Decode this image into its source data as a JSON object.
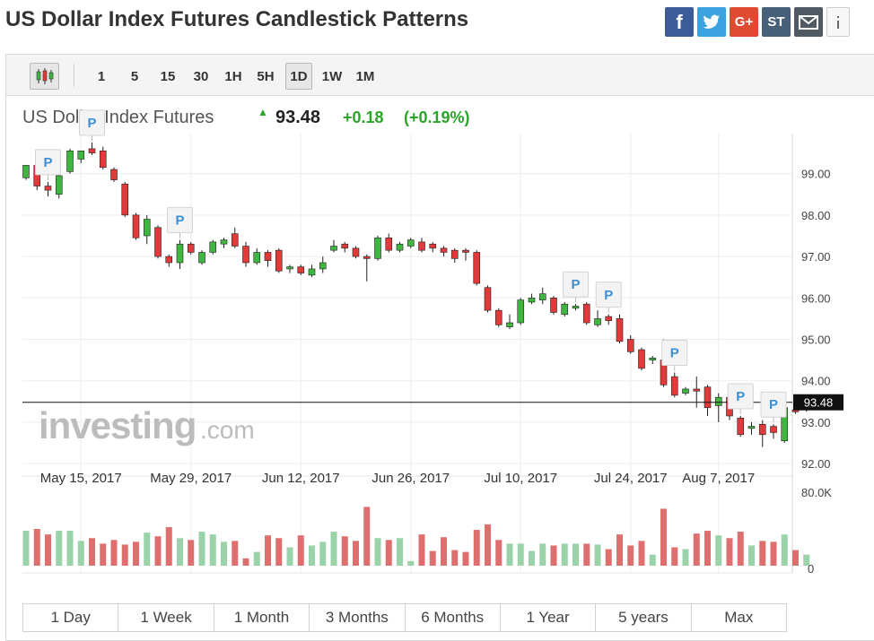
{
  "page": {
    "title": "US Dollar Index Futures Candlestick Patterns"
  },
  "share": {
    "facebook": "f",
    "twitter": "t",
    "googleplus": "G+",
    "stocktwits": "ST"
  },
  "toolbar": {
    "intervals": [
      "1",
      "5",
      "15",
      "30",
      "1H",
      "5H",
      "1D",
      "1W",
      "1M"
    ],
    "active": "1D"
  },
  "quote": {
    "name": "US Dollar Index Futures",
    "price": "93.48",
    "change": "+0.18",
    "change_pct": "(+0.19%)"
  },
  "watermark": {
    "brand": "investing",
    "suffix": ".com"
  },
  "ranges": [
    "1 Day",
    "1 Week",
    "1 Month",
    "3 Months",
    "6 Months",
    "1 Year",
    "5 years",
    "Max"
  ],
  "colors": {
    "up": "#3fb63f",
    "down": "#e03a3a",
    "vol_up": "#9ad3a9",
    "vol_down": "#df6f6f",
    "quote_up": "#2aa52a"
  },
  "chart_data": {
    "type": "candlestick",
    "price_axis": {
      "ticks": [
        92,
        93,
        94,
        95,
        96,
        97,
        98,
        99
      ],
      "tick_labels": [
        "92.00",
        "93.00",
        "94.00",
        "95.00",
        "96.00",
        "97.00",
        "98.00",
        "99.00"
      ],
      "range": [
        91.7,
        99.75
      ]
    },
    "last_price": 93.48,
    "last_price_label": "93.48",
    "volume_axis": {
      "tick_labels": [
        "80.0K",
        "0"
      ],
      "max": 80000
    },
    "x_labels": [
      "May 15, 2017",
      "May 29, 2017",
      "Jun 12, 2017",
      "Jun 26, 2017",
      "Jul 10, 2017",
      "Jul 24, 2017",
      "Aug 7, 2017"
    ],
    "x_label_index": [
      5,
      15,
      25,
      35,
      45,
      55,
      63
    ],
    "pattern_marker": "P",
    "pattern_index": [
      2,
      6,
      14,
      50,
      53,
      59,
      65,
      68
    ],
    "candles": [
      {
        "o": 98.9,
        "h": 99.15,
        "l": 98.85,
        "c": 99.2,
        "v": 38000
      },
      {
        "o": 99.2,
        "h": 99.35,
        "l": 98.6,
        "c": 98.7,
        "v": 40000
      },
      {
        "o": 98.7,
        "h": 98.8,
        "l": 98.45,
        "c": 98.6,
        "v": 34000
      },
      {
        "o": 98.5,
        "h": 99.1,
        "l": 98.4,
        "c": 98.95,
        "v": 38000
      },
      {
        "o": 99.05,
        "h": 99.6,
        "l": 99.0,
        "c": 99.55,
        "v": 38000
      },
      {
        "o": 99.35,
        "h": 99.55,
        "l": 99.25,
        "c": 99.55,
        "v": 27000
      },
      {
        "o": 99.6,
        "h": 99.75,
        "l": 99.45,
        "c": 99.5,
        "v": 30000
      },
      {
        "o": 99.55,
        "h": 99.65,
        "l": 99.1,
        "c": 99.15,
        "v": 24000
      },
      {
        "o": 99.1,
        "h": 99.15,
        "l": 98.8,
        "c": 98.85,
        "v": 28000
      },
      {
        "o": 98.75,
        "h": 98.8,
        "l": 97.95,
        "c": 98.0,
        "v": 23000
      },
      {
        "o": 98.0,
        "h": 98.05,
        "l": 97.4,
        "c": 97.45,
        "v": 26000
      },
      {
        "o": 97.5,
        "h": 98.0,
        "l": 97.3,
        "c": 97.9,
        "v": 36000
      },
      {
        "o": 97.7,
        "h": 97.75,
        "l": 96.95,
        "c": 97.0,
        "v": 32000
      },
      {
        "o": 97.0,
        "h": 97.05,
        "l": 96.75,
        "c": 96.85,
        "v": 42000
      },
      {
        "o": 96.85,
        "h": 97.4,
        "l": 96.7,
        "c": 97.3,
        "v": 30000
      },
      {
        "o": 97.3,
        "h": 97.35,
        "l": 97.05,
        "c": 97.1,
        "v": 28000
      },
      {
        "o": 96.85,
        "h": 97.15,
        "l": 96.8,
        "c": 97.1,
        "v": 37000
      },
      {
        "o": 97.1,
        "h": 97.4,
        "l": 97.05,
        "c": 97.35,
        "v": 34000
      },
      {
        "o": 97.3,
        "h": 97.45,
        "l": 97.2,
        "c": 97.4,
        "v": 26000
      },
      {
        "o": 97.55,
        "h": 97.7,
        "l": 97.2,
        "c": 97.25,
        "v": 27000
      },
      {
        "o": 97.25,
        "h": 97.35,
        "l": 96.75,
        "c": 96.85,
        "v": 8000
      },
      {
        "o": 96.85,
        "h": 97.2,
        "l": 96.8,
        "c": 97.1,
        "v": 15000
      },
      {
        "o": 97.1,
        "h": 97.15,
        "l": 96.75,
        "c": 96.9,
        "v": 33000
      },
      {
        "o": 97.15,
        "h": 97.2,
        "l": 96.6,
        "c": 96.65,
        "v": 30000
      },
      {
        "o": 96.7,
        "h": 96.8,
        "l": 96.6,
        "c": 96.75,
        "v": 20000
      },
      {
        "o": 96.75,
        "h": 96.8,
        "l": 96.55,
        "c": 96.6,
        "v": 33000
      },
      {
        "o": 96.55,
        "h": 96.8,
        "l": 96.5,
        "c": 96.7,
        "v": 22000
      },
      {
        "o": 96.7,
        "h": 97.0,
        "l": 96.6,
        "c": 96.85,
        "v": 26000
      },
      {
        "o": 97.15,
        "h": 97.4,
        "l": 97.1,
        "c": 97.25,
        "v": 37000
      },
      {
        "o": 97.3,
        "h": 97.35,
        "l": 97.1,
        "c": 97.2,
        "v": 32000
      },
      {
        "o": 97.2,
        "h": 97.25,
        "l": 96.95,
        "c": 97.0,
        "v": 27000
      },
      {
        "o": 97.0,
        "h": 97.05,
        "l": 96.4,
        "c": 96.95,
        "v": 64000
      },
      {
        "o": 96.95,
        "h": 97.5,
        "l": 96.9,
        "c": 97.45,
        "v": 30000
      },
      {
        "o": 97.45,
        "h": 97.55,
        "l": 97.1,
        "c": 97.15,
        "v": 28000
      },
      {
        "o": 97.15,
        "h": 97.35,
        "l": 97.1,
        "c": 97.3,
        "v": 30000
      },
      {
        "o": 97.25,
        "h": 97.45,
        "l": 97.2,
        "c": 97.4,
        "v": 5000
      },
      {
        "o": 97.35,
        "h": 97.45,
        "l": 97.1,
        "c": 97.15,
        "v": 34000
      },
      {
        "o": 97.3,
        "h": 97.35,
        "l": 97.1,
        "c": 97.2,
        "v": 16000
      },
      {
        "o": 97.2,
        "h": 97.25,
        "l": 97.0,
        "c": 97.1,
        "v": 31000
      },
      {
        "o": 97.15,
        "h": 97.2,
        "l": 96.85,
        "c": 96.95,
        "v": 17000
      },
      {
        "o": 97.15,
        "h": 97.2,
        "l": 96.9,
        "c": 97.1,
        "v": 15000
      },
      {
        "o": 97.1,
        "h": 97.15,
        "l": 96.3,
        "c": 96.35,
        "v": 39000
      },
      {
        "o": 96.25,
        "h": 96.3,
        "l": 95.65,
        "c": 95.7,
        "v": 45000
      },
      {
        "o": 95.7,
        "h": 95.75,
        "l": 95.3,
        "c": 95.35,
        "v": 28000
      },
      {
        "o": 95.3,
        "h": 95.6,
        "l": 95.25,
        "c": 95.4,
        "v": 24000
      },
      {
        "o": 95.4,
        "h": 96.0,
        "l": 95.35,
        "c": 95.95,
        "v": 24000
      },
      {
        "o": 95.9,
        "h": 96.1,
        "l": 95.85,
        "c": 96.0,
        "v": 16000
      },
      {
        "o": 95.95,
        "h": 96.25,
        "l": 95.85,
        "c": 96.1,
        "v": 24000
      },
      {
        "o": 96.0,
        "h": 96.05,
        "l": 95.6,
        "c": 95.65,
        "v": 22000
      },
      {
        "o": 95.6,
        "h": 95.9,
        "l": 95.55,
        "c": 95.85,
        "v": 24000
      },
      {
        "o": 95.75,
        "h": 95.85,
        "l": 95.7,
        "c": 95.8,
        "v": 24000
      },
      {
        "o": 95.85,
        "h": 95.9,
        "l": 95.35,
        "c": 95.4,
        "v": 24000
      },
      {
        "o": 95.35,
        "h": 95.7,
        "l": 95.3,
        "c": 95.5,
        "v": 23000
      },
      {
        "o": 95.55,
        "h": 95.6,
        "l": 95.35,
        "c": 95.45,
        "v": 18000
      },
      {
        "o": 95.5,
        "h": 95.6,
        "l": 94.9,
        "c": 94.95,
        "v": 34000
      },
      {
        "o": 95.0,
        "h": 95.1,
        "l": 94.65,
        "c": 94.7,
        "v": 22000
      },
      {
        "o": 94.75,
        "h": 94.8,
        "l": 94.25,
        "c": 94.3,
        "v": 27000
      },
      {
        "o": 94.5,
        "h": 94.6,
        "l": 94.4,
        "c": 94.55,
        "v": 12000
      },
      {
        "o": 94.5,
        "h": 95.0,
        "l": 93.85,
        "c": 93.9,
        "v": 62000
      },
      {
        "o": 94.1,
        "h": 94.2,
        "l": 93.6,
        "c": 93.65,
        "v": 20000
      },
      {
        "o": 93.7,
        "h": 93.85,
        "l": 93.65,
        "c": 93.8,
        "v": 18000
      },
      {
        "o": 93.8,
        "h": 94.1,
        "l": 93.35,
        "c": 93.75,
        "v": 35000
      },
      {
        "o": 93.85,
        "h": 93.9,
        "l": 93.15,
        "c": 93.35,
        "v": 38000
      },
      {
        "o": 93.4,
        "h": 93.7,
        "l": 93.0,
        "c": 93.6,
        "v": 33000
      },
      {
        "o": 93.6,
        "h": 93.65,
        "l": 93.05,
        "c": 93.15,
        "v": 30000
      },
      {
        "o": 93.1,
        "h": 93.15,
        "l": 92.65,
        "c": 92.7,
        "v": 37000
      },
      {
        "o": 92.85,
        "h": 93.0,
        "l": 92.7,
        "c": 92.9,
        "v": 22000
      },
      {
        "o": 92.95,
        "h": 93.05,
        "l": 92.4,
        "c": 92.7,
        "v": 27000
      },
      {
        "o": 92.9,
        "h": 92.95,
        "l": 92.6,
        "c": 92.75,
        "v": 26000
      },
      {
        "o": 92.55,
        "h": 93.5,
        "l": 92.5,
        "c": 93.35,
        "v": 34000
      },
      {
        "o": 93.3,
        "h": 93.45,
        "l": 93.2,
        "c": 93.25,
        "v": 17000
      },
      {
        "o": 93.3,
        "h": 93.65,
        "l": 93.25,
        "c": 93.48,
        "v": 12000
      }
    ]
  }
}
